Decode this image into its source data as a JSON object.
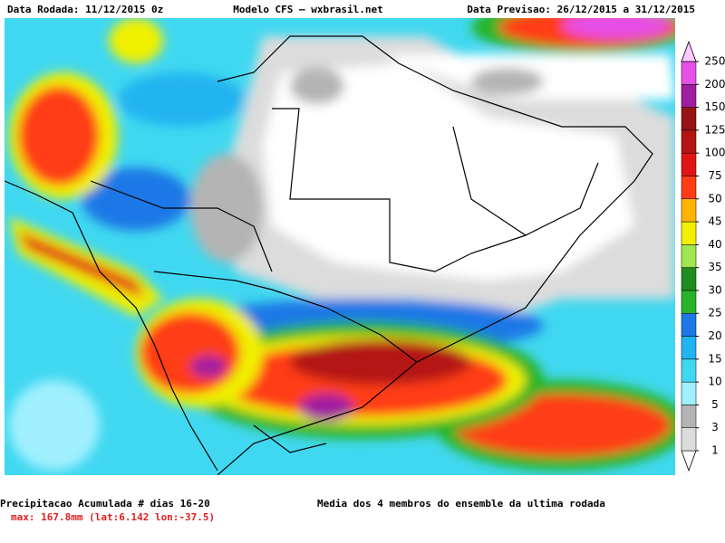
{
  "header": {
    "left": "Data Rodada: 11/12/2015 0z",
    "center": "Modelo CFS — wxbrasil.net",
    "right": "Data Previsao: 26/12/2015 a 31/12/2015"
  },
  "colorbar": {
    "levels": [
      1,
      3,
      5,
      10,
      15,
      20,
      25,
      30,
      35,
      40,
      45,
      50,
      75,
      100,
      125,
      150,
      200,
      250
    ],
    "colors": [
      "#ffffff",
      "#dcdcdc",
      "#b4b4b4",
      "#a0f0ff",
      "#40d8f0",
      "#20b4f0",
      "#1e78e6",
      "#28b428",
      "#1e8c1e",
      "#a0e650",
      "#f0f000",
      "#ffb400",
      "#ff3c14",
      "#e11414",
      "#b41414",
      "#961414",
      "#a01ea0",
      "#e650e6",
      "#ffc8ff"
    ]
  },
  "footer": {
    "title": "Precipitacao Acumulada # dias 16-20",
    "max": "max: 167.8mm (lat:6.142 lon:-37.5)",
    "note": "Media dos 4 membros do ensemble da ultima rodada"
  }
}
